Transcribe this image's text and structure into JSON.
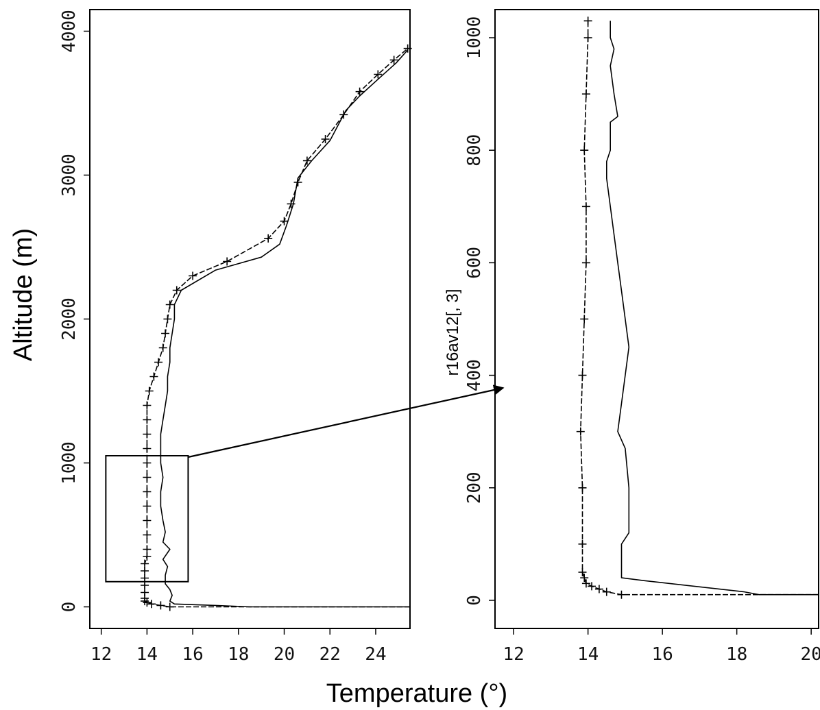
{
  "figure": {
    "xlabel": "Temperature (°)",
    "ylabel": "Altitude (m)"
  },
  "chart_data": [
    {
      "type": "line",
      "panel": "overview",
      "title": "",
      "xlabel": "",
      "ylabel": "",
      "xlim": [
        11.5,
        25.5
      ],
      "ylim": [
        -150,
        4150
      ],
      "xticks": [
        12,
        14,
        16,
        18,
        20,
        22,
        24
      ],
      "yticks": [
        0,
        1000,
        2000,
        3000,
        4000
      ],
      "ytick_labels": [
        "0",
        "1000",
        "2000",
        "3000",
        "4000"
      ],
      "series": [
        {
          "style": "solid",
          "points": [
            [
              25.5,
              0
            ],
            [
              18.5,
              0
            ],
            [
              17,
              10
            ],
            [
              15.2,
              20
            ],
            [
              15.0,
              40
            ],
            [
              15.1,
              80
            ],
            [
              15.0,
              120
            ],
            [
              14.8,
              160
            ],
            [
              14.8,
              220
            ],
            [
              14.9,
              280
            ],
            [
              14.7,
              330
            ],
            [
              15.0,
              400
            ],
            [
              14.7,
              450
            ],
            [
              14.8,
              520
            ],
            [
              14.7,
              600
            ],
            [
              14.6,
              700
            ],
            [
              14.6,
              800
            ],
            [
              14.7,
              900
            ],
            [
              14.6,
              1000
            ],
            [
              14.6,
              1100
            ],
            [
              14.6,
              1200
            ],
            [
              14.7,
              1300
            ],
            [
              14.8,
              1400
            ],
            [
              14.9,
              1500
            ],
            [
              14.9,
              1600
            ],
            [
              15.0,
              1700
            ],
            [
              15.0,
              1800
            ],
            [
              15.1,
              1900
            ],
            [
              15.2,
              2000
            ],
            [
              15.2,
              2100
            ],
            [
              15.5,
              2200
            ],
            [
              17.0,
              2340
            ],
            [
              19.0,
              2430
            ],
            [
              19.8,
              2520
            ],
            [
              20.1,
              2650
            ],
            [
              20.4,
              2800
            ],
            [
              20.6,
              2980
            ],
            [
              21.2,
              3100
            ],
            [
              22.0,
              3240
            ],
            [
              22.4,
              3360
            ],
            [
              22.7,
              3450
            ],
            [
              23.3,
              3550
            ],
            [
              24.2,
              3680
            ],
            [
              24.9,
              3780
            ],
            [
              25.4,
              3870
            ]
          ]
        },
        {
          "style": "dashed-cross",
          "points": [
            [
              25.5,
              0
            ],
            [
              15.0,
              0
            ],
            [
              14.6,
              10
            ],
            [
              14.2,
              20
            ],
            [
              14.0,
              30
            ],
            [
              13.9,
              40
            ],
            [
              13.9,
              60
            ],
            [
              13.9,
              100
            ],
            [
              13.9,
              150
            ],
            [
              13.9,
              200
            ],
            [
              13.9,
              250
            ],
            [
              13.9,
              300
            ],
            [
              14.0,
              350
            ],
            [
              14.0,
              400
            ],
            [
              14.0,
              500
            ],
            [
              14.0,
              600
            ],
            [
              14.0,
              700
            ],
            [
              14.0,
              800
            ],
            [
              14.0,
              900
            ],
            [
              14.0,
              1000
            ],
            [
              14.0,
              1100
            ],
            [
              14.0,
              1200
            ],
            [
              14.0,
              1300
            ],
            [
              14.0,
              1400
            ],
            [
              14.1,
              1500
            ],
            [
              14.3,
              1600
            ],
            [
              14.5,
              1700
            ],
            [
              14.7,
              1800
            ],
            [
              14.8,
              1900
            ],
            [
              14.9,
              2000
            ],
            [
              15.0,
              2100
            ],
            [
              15.3,
              2200
            ],
            [
              16.0,
              2300
            ],
            [
              17.5,
              2400
            ],
            [
              19.3,
              2560
            ],
            [
              20.0,
              2680
            ],
            [
              20.3,
              2800
            ],
            [
              20.6,
              2950
            ],
            [
              21.0,
              3100
            ],
            [
              21.8,
              3250
            ],
            [
              22.6,
              3420
            ],
            [
              23.3,
              3580
            ],
            [
              24.1,
              3700
            ],
            [
              24.8,
              3800
            ],
            [
              25.4,
              3880
            ]
          ]
        }
      ],
      "zoom_box": {
        "x": [
          12.2,
          15.8
        ],
        "y": [
          175,
          1050
        ]
      }
    },
    {
      "type": "line",
      "panel": "zoom",
      "title": "",
      "xlabel": "",
      "ylabel": "r16av12[, 3]",
      "xlim": [
        11.5,
        20.2
      ],
      "ylim": [
        -50,
        1050
      ],
      "xticks": [
        12,
        14,
        16,
        18,
        20
      ],
      "yticks": [
        0,
        200,
        400,
        600,
        800,
        1000
      ],
      "ytick_labels": [
        "0",
        "200",
        "400",
        "600",
        "800",
        "1000"
      ],
      "series": [
        {
          "style": "solid",
          "points": [
            [
              20.2,
              10
            ],
            [
              18.6,
              10
            ],
            [
              18.2,
              15
            ],
            [
              15.5,
              35
            ],
            [
              14.9,
              40
            ],
            [
              14.9,
              100
            ],
            [
              15.1,
              120
            ],
            [
              15.1,
              200
            ],
            [
              15.0,
              270
            ],
            [
              14.8,
              300
            ],
            [
              14.9,
              350
            ],
            [
              15.0,
              400
            ],
            [
              15.1,
              450
            ],
            [
              15.0,
              500
            ],
            [
              14.9,
              550
            ],
            [
              14.8,
              600
            ],
            [
              14.7,
              650
            ],
            [
              14.6,
              700
            ],
            [
              14.5,
              750
            ],
            [
              14.5,
              780
            ],
            [
              14.6,
              800
            ],
            [
              14.6,
              850
            ],
            [
              14.8,
              860
            ],
            [
              14.7,
              900
            ],
            [
              14.6,
              950
            ],
            [
              14.7,
              980
            ],
            [
              14.6,
              1000
            ],
            [
              14.6,
              1030
            ]
          ]
        },
        {
          "style": "dashed-cross",
          "points": [
            [
              20.2,
              10
            ],
            [
              14.9,
              10
            ],
            [
              14.5,
              15
            ],
            [
              14.3,
              20
            ],
            [
              14.1,
              25
            ],
            [
              13.95,
              30
            ],
            [
              13.9,
              40
            ],
            [
              13.85,
              50
            ],
            [
              13.85,
              100
            ],
            [
              13.85,
              200
            ],
            [
              13.8,
              300
            ],
            [
              13.85,
              400
            ],
            [
              13.9,
              500
            ],
            [
              13.95,
              600
            ],
            [
              13.95,
              700
            ],
            [
              13.9,
              800
            ],
            [
              13.95,
              900
            ],
            [
              14.0,
              1000
            ],
            [
              14.0,
              1030
            ]
          ]
        }
      ]
    }
  ]
}
